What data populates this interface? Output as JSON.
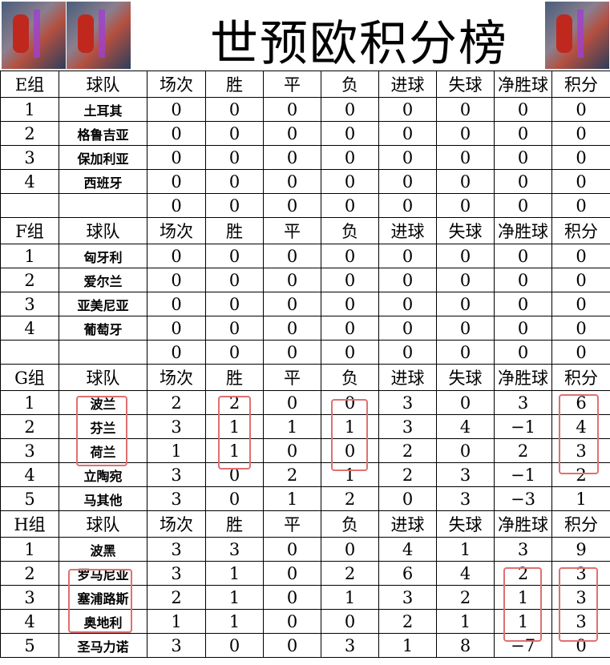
{
  "title": "世预欧积分榜",
  "columns": [
    "球队",
    "场次",
    "胜",
    "平",
    "负",
    "进球",
    "失球",
    "净胜球",
    "积分"
  ],
  "groups": [
    {
      "name": "E组",
      "rows": [
        [
          "1",
          "土耳其",
          "0",
          "0",
          "0",
          "0",
          "0",
          "0",
          "0",
          "0"
        ],
        [
          "2",
          "格鲁吉亚",
          "0",
          "0",
          "0",
          "0",
          "0",
          "0",
          "0",
          "0"
        ],
        [
          "3",
          "保加利亚",
          "0",
          "0",
          "0",
          "0",
          "0",
          "0",
          "0",
          "0"
        ],
        [
          "4",
          "西班牙",
          "0",
          "0",
          "0",
          "0",
          "0",
          "0",
          "0",
          "0"
        ],
        [
          "",
          "",
          "0",
          "0",
          "0",
          "0",
          "0",
          "0",
          "0",
          "0"
        ]
      ]
    },
    {
      "name": "F组",
      "rows": [
        [
          "1",
          "匈牙利",
          "0",
          "0",
          "0",
          "0",
          "0",
          "0",
          "0",
          "0"
        ],
        [
          "2",
          "爱尔兰",
          "0",
          "0",
          "0",
          "0",
          "0",
          "0",
          "0",
          "0"
        ],
        [
          "3",
          "亚美尼亚",
          "0",
          "0",
          "0",
          "0",
          "0",
          "0",
          "0",
          "0"
        ],
        [
          "4",
          "葡萄牙",
          "0",
          "0",
          "0",
          "0",
          "0",
          "0",
          "0",
          "0"
        ],
        [
          "",
          "",
          "0",
          "0",
          "0",
          "0",
          "0",
          "0",
          "0",
          "0"
        ]
      ]
    },
    {
      "name": "G组",
      "rows": [
        [
          "1",
          "波兰",
          "2",
          "2",
          "0",
          "0",
          "3",
          "0",
          "3",
          "6"
        ],
        [
          "2",
          "芬兰",
          "3",
          "1",
          "1",
          "1",
          "3",
          "4",
          "−1",
          "4"
        ],
        [
          "3",
          "荷兰",
          "1",
          "1",
          "0",
          "0",
          "2",
          "0",
          "2",
          "3"
        ],
        [
          "4",
          "立陶宛",
          "3",
          "0",
          "2",
          "1",
          "2",
          "3",
          "−1",
          "2"
        ],
        [
          "5",
          "马其他",
          "3",
          "0",
          "1",
          "2",
          "0",
          "3",
          "−3",
          "1"
        ]
      ]
    },
    {
      "name": "H组",
      "rows": [
        [
          "1",
          "波黑",
          "3",
          "3",
          "0",
          "0",
          "4",
          "1",
          "3",
          "9"
        ],
        [
          "2",
          "罗马尼亚",
          "3",
          "1",
          "0",
          "2",
          "6",
          "4",
          "2",
          "3"
        ],
        [
          "3",
          "塞浦路斯",
          "2",
          "1",
          "0",
          "1",
          "3",
          "2",
          "1",
          "3"
        ],
        [
          "4",
          "奥地利",
          "1",
          "1",
          "0",
          "0",
          "2",
          "1",
          "1",
          "3"
        ],
        [
          "5",
          "圣马力诺",
          "3",
          "0",
          "0",
          "3",
          "1",
          "8",
          "−7",
          "0"
        ]
      ]
    }
  ],
  "highlight_color": "#e07070"
}
